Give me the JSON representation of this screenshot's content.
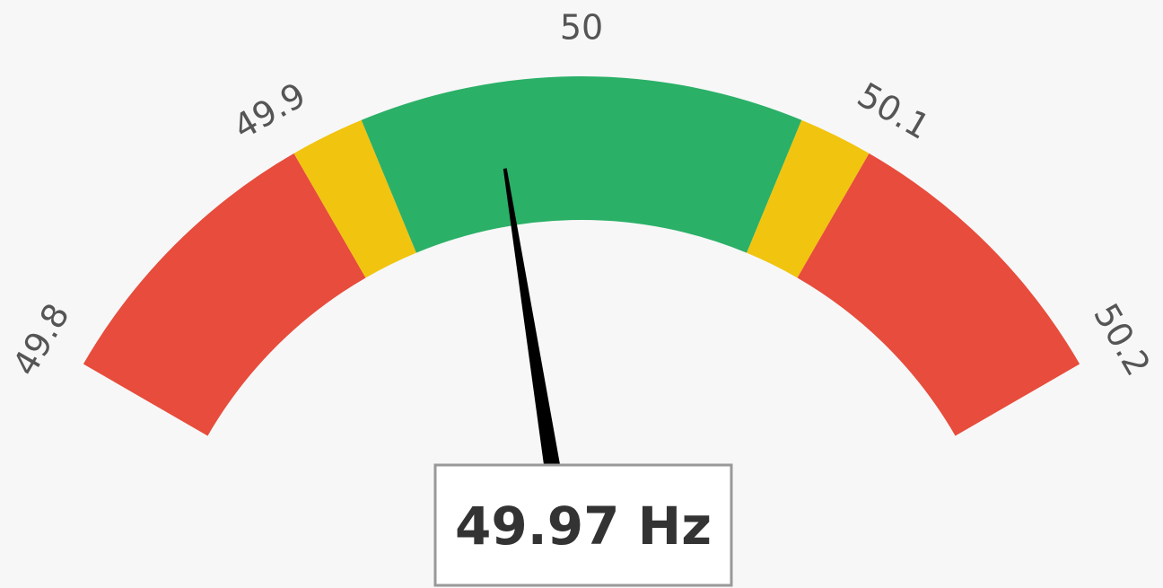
{
  "chart_data": {
    "type": "gauge",
    "range": [
      49.8,
      50.2
    ],
    "ticks": [
      49.8,
      49.9,
      50,
      50.1,
      50.2
    ],
    "bands": [
      {
        "from": 49.8,
        "to": 49.9,
        "color": "#e74c3c"
      },
      {
        "from": 49.9,
        "to": 49.925,
        "color": "#f1c40f"
      },
      {
        "from": 49.925,
        "to": 50.075,
        "color": "#2bb067"
      },
      {
        "from": 50.075,
        "to": 50.1,
        "color": "#f1c40f"
      },
      {
        "from": 50.1,
        "to": 50.2,
        "color": "#e74c3c"
      }
    ],
    "value": 49.97,
    "value_label": "49.97 Hz",
    "needle_color": "#000000"
  }
}
